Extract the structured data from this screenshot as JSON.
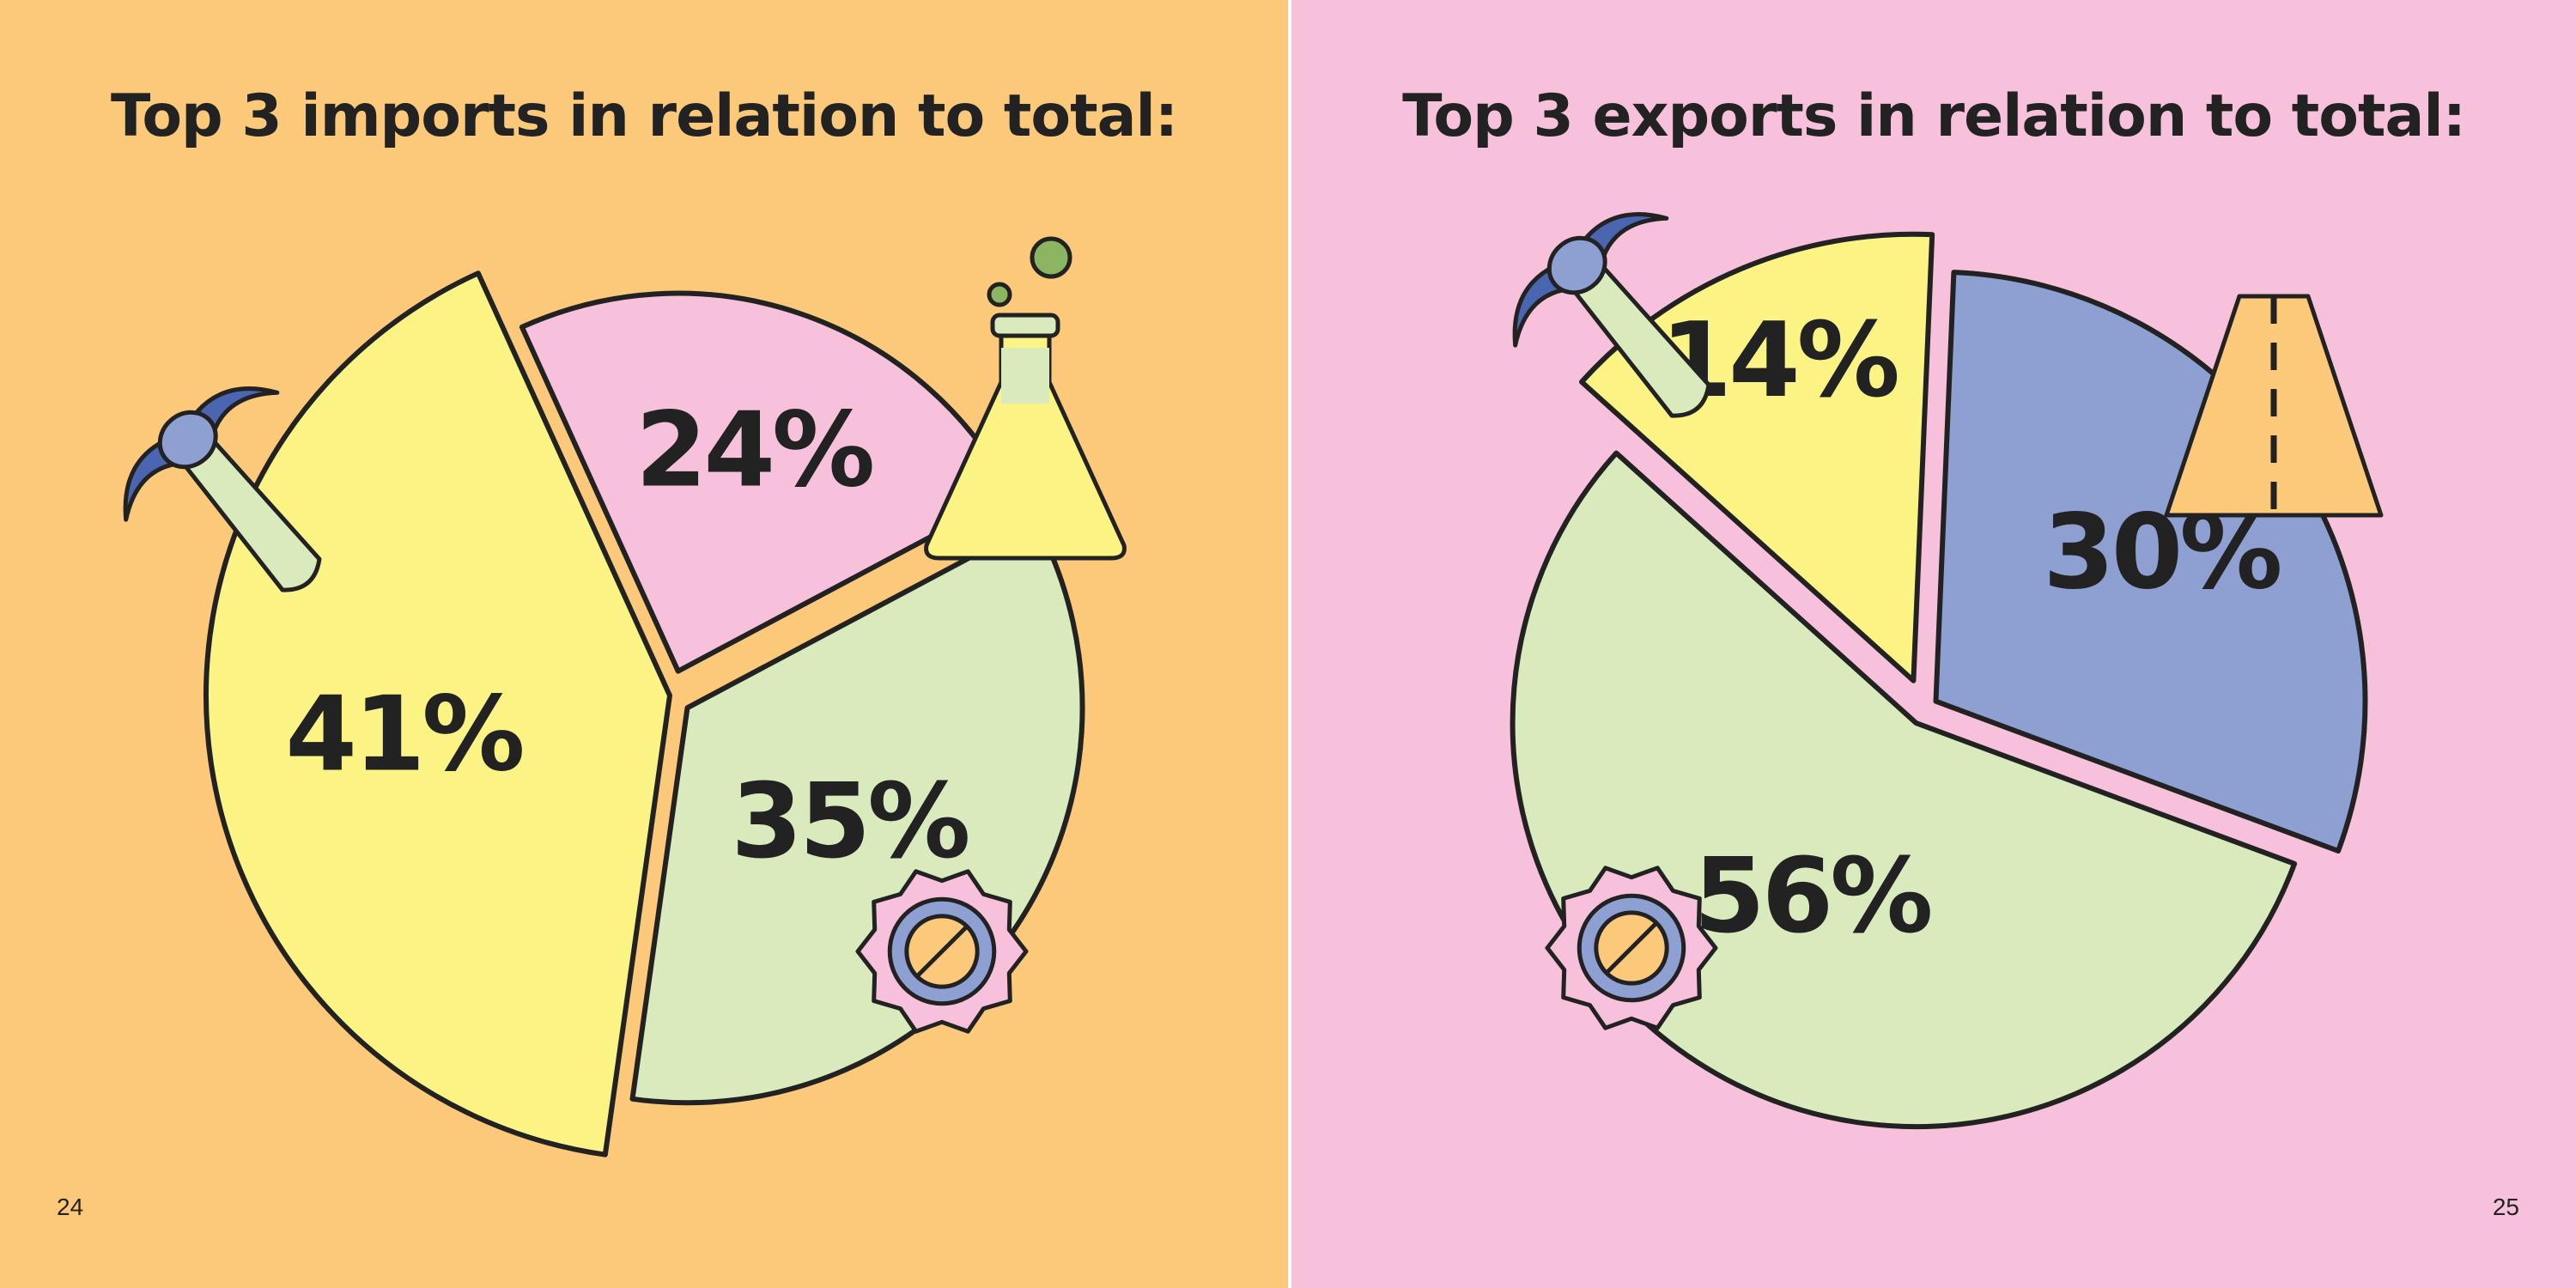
{
  "pages": {
    "left": {
      "background": "#fcc97a",
      "page_number": "24"
    },
    "right": {
      "background": "#f8c1db",
      "page_number": "25"
    }
  },
  "colors": {
    "yellow": "#fbf383",
    "pink": "#f8c1db",
    "green": "#d9ebbc",
    "blue": "#8e9fd2",
    "orange": "#fcc97a",
    "dark_blue": "#4a66b0",
    "outline": "#222222"
  },
  "chart_data": [
    {
      "type": "pie",
      "title": "Top 3 imports in relation to total:",
      "slices": [
        {
          "label": "41%",
          "value": 41,
          "color": "#fbf383",
          "icon": "pickaxe-icon"
        },
        {
          "label": "24%",
          "value": 24,
          "color": "#f8c1db",
          "icon": "flask-icon"
        },
        {
          "label": "35%",
          "value": 35,
          "color": "#d9ebbc",
          "icon": "gear-icon"
        }
      ]
    },
    {
      "type": "pie",
      "title": "Top 3 exports in relation to total:",
      "slices": [
        {
          "label": "14%",
          "value": 14,
          "color": "#fbf383",
          "icon": "pickaxe-icon"
        },
        {
          "label": "30%",
          "value": 30,
          "color": "#8e9fd2",
          "icon": "road-icon"
        },
        {
          "label": "56%",
          "value": 56,
          "color": "#d9ebbc",
          "icon": "gear-icon"
        }
      ]
    }
  ]
}
